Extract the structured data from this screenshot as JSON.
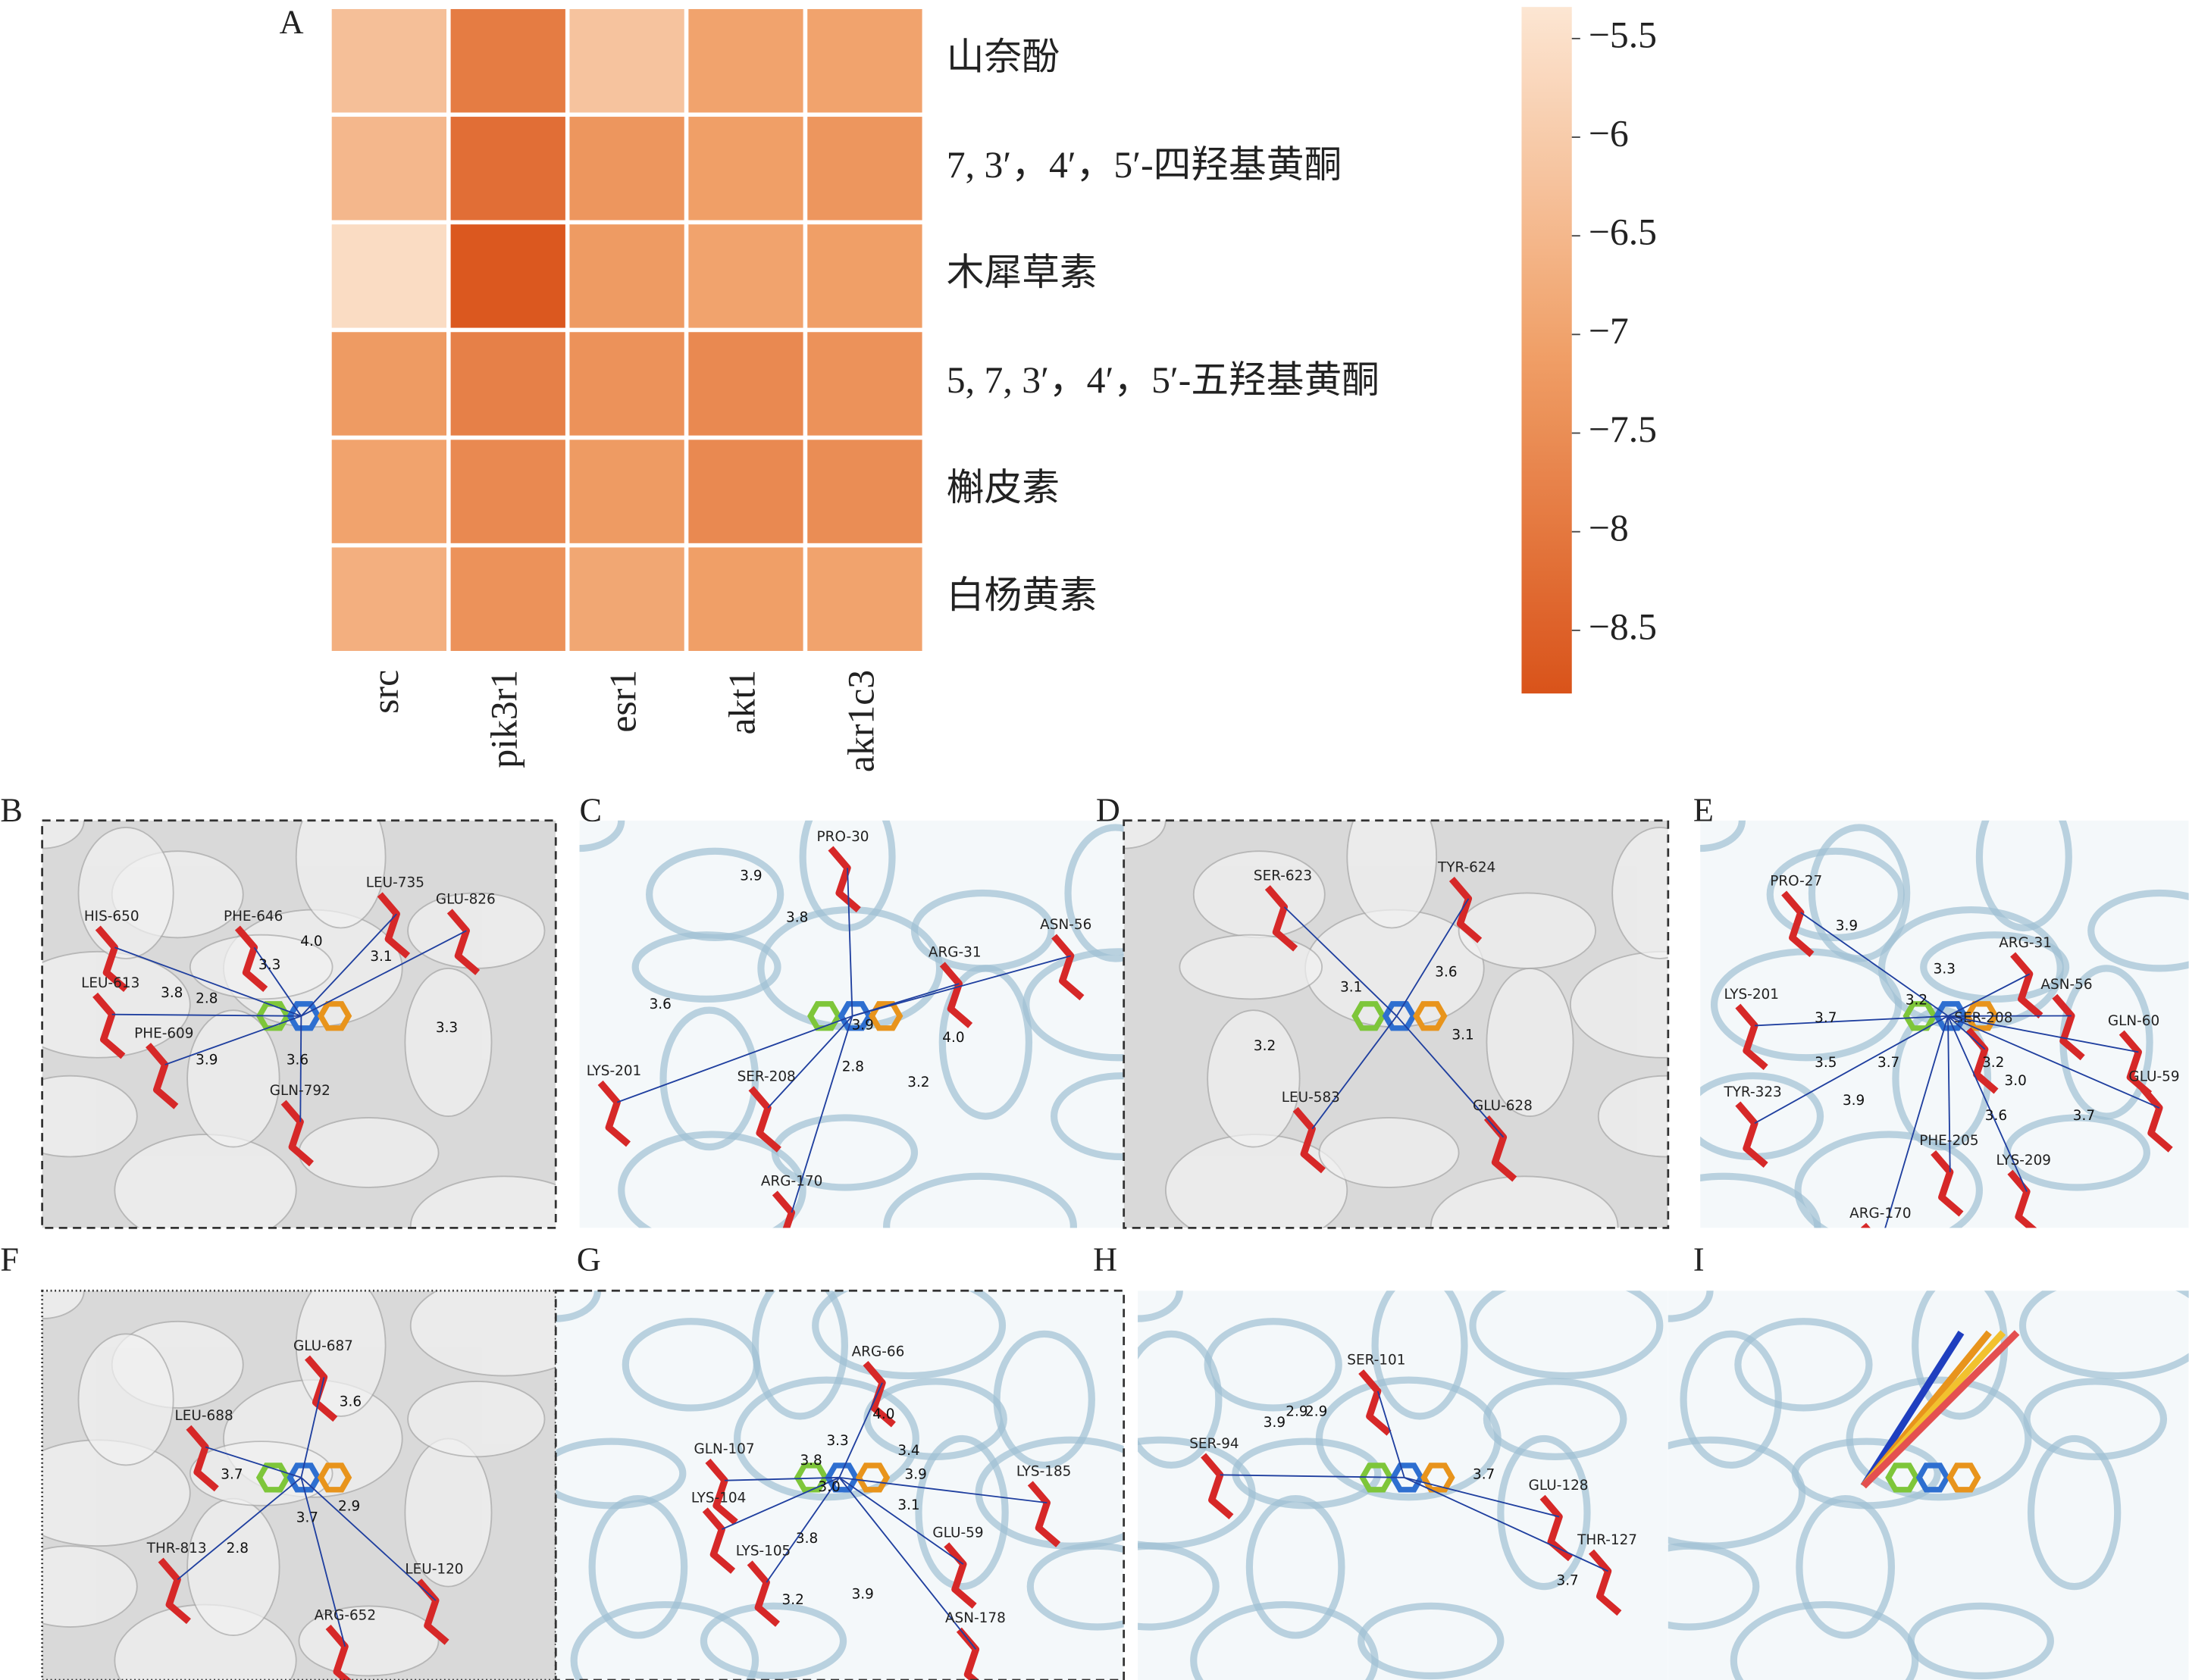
{
  "chart_data": {
    "type": "heatmap",
    "panel_label": "A",
    "x_categories": [
      "src",
      "pik3r1",
      "esr1",
      "akt1",
      "akr1c3"
    ],
    "y_categories": [
      "山奈酚",
      "7, 3′，4′，5′-四羟基黄酮",
      "木犀草素",
      "5, 7, 3′，4′，5′-五羟基黄酮",
      "槲皮素",
      "白杨黄素"
    ],
    "values": [
      [
        -6.3,
        -7.9,
        -6.2,
        -7.0,
        -7.0
      ],
      [
        -6.5,
        -8.2,
        -7.3,
        -7.1,
        -7.3
      ],
      [
        -5.6,
        -8.7,
        -7.2,
        -7.0,
        -7.1
      ],
      [
        -7.2,
        -7.8,
        -7.4,
        -7.6,
        -7.4
      ],
      [
        -7.0,
        -7.6,
        -7.2,
        -7.6,
        -7.5
      ],
      [
        -6.7,
        -7.4,
        -6.9,
        -7.1,
        -7.0
      ]
    ],
    "colormap": [
      "#d9531a",
      "#f0a068",
      "#fce6d3"
    ],
    "clim": [
      -8.82,
      -5.34
    ],
    "cticks": [
      {
        "value": -5.5,
        "label": "−5.5"
      },
      {
        "value": -6,
        "label": "−6"
      },
      {
        "value": -6.5,
        "label": "−6.5"
      },
      {
        "value": -7,
        "label": "−7"
      },
      {
        "value": -7.5,
        "label": "−7.5"
      },
      {
        "value": -8,
        "label": "−8"
      },
      {
        "value": -8.5,
        "label": "−8.5"
      }
    ]
  },
  "docking_panels": [
    {
      "label": "B",
      "residues": [
        "HIS-650",
        "PHE-646",
        "LEU-735",
        "GLU-826",
        "LEU-613",
        "PHE-609",
        "GLN-792"
      ],
      "distances": [
        "2.8",
        "3.8",
        "3.3",
        "4.0",
        "3.1",
        "3.3",
        "3.9",
        "3.6"
      ]
    },
    {
      "label": "C",
      "residues": [
        "PRO-30",
        "ARG-31",
        "ASN-56",
        "LYS-201",
        "SER-208",
        "ARG-170"
      ],
      "distances": [
        "3.9",
        "3.8",
        "3.6",
        "3.9",
        "4.0",
        "2.8",
        "3.2"
      ]
    },
    {
      "label": "D",
      "residues": [
        "SER-623",
        "TYR-624",
        "LEU-583",
        "GLU-628"
      ],
      "distances": [
        "3.6",
        "3.1",
        "3.2",
        "3.1"
      ]
    },
    {
      "label": "E",
      "residues": [
        "PRO-27",
        "ARG-31",
        "LYS-201",
        "ASN-56",
        "SER-208",
        "GLN-60",
        "GLU-59",
        "TYR-323",
        "PHE-205",
        "LYS-209",
        "ARG-170"
      ],
      "distances": [
        "3.9",
        "3.3",
        "3.7",
        "3.2",
        "3.5",
        "3.7",
        "3.2",
        "3.0",
        "3.9",
        "3.6",
        "3.7"
      ]
    },
    {
      "label": "F",
      "residues": [
        "GLU-687",
        "LEU-688",
        "THR-813",
        "LEU-120",
        "ARG-652"
      ],
      "distances": [
        "3.6",
        "3.7",
        "3.7",
        "2.9",
        "2.8"
      ]
    },
    {
      "label": "G",
      "residues": [
        "ARG-66",
        "GLN-107",
        "LYS-185",
        "LYS-104",
        "LYS-105",
        "GLU-59",
        "ASN-178"
      ],
      "distances": [
        "4.0",
        "3.3",
        "3.4",
        "3.8",
        "3.9",
        "3.0",
        "3.1",
        "3.8",
        "3.2",
        "3.9"
      ]
    },
    {
      "label": "H",
      "residues": [
        "SER-101",
        "SER-94",
        "GLU-128",
        "THR-127"
      ],
      "distances": [
        "3.9",
        "2.9",
        "2.9",
        "3.7",
        "3.7"
      ]
    },
    {
      "label": "I",
      "residues": [],
      "distances": []
    }
  ]
}
